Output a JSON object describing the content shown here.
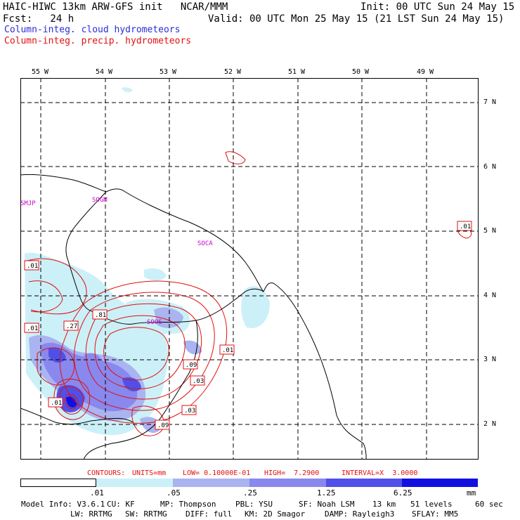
{
  "header": {
    "line1_left": "HAIC-HIWC 13km ARW-GFS init   NCAR/MMM",
    "line1_right": "Init: 00 UTC Sun 24 May 15",
    "line2_left": "Fcst:   24 h",
    "line2_right": "Valid: 00 UTC Mon 25 May 15 (21 LST Sun 24 May 15)",
    "line3": "Column-integ. cloud hydrometeors",
    "line4": "Column-integ. precip. hydrometeors"
  },
  "axes": {
    "lon_labels": [
      "55 W",
      "54 W",
      "53 W",
      "52 W",
      "51 W",
      "50 W",
      "49 W"
    ],
    "lat_labels": [
      "7 N",
      "6 N",
      "5 N",
      "4 N",
      "3 N",
      "2 N"
    ]
  },
  "stations": [
    "SMJP",
    "SOGM",
    "SOCA",
    "SOOS"
  ],
  "contour_labels": [
    ".01",
    ".01",
    ".01",
    ".27",
    ".81",
    ".01",
    ".09",
    ".03",
    ".03",
    ".09",
    ".01",
    ".01"
  ],
  "contour_info": {
    "contours": "CONTOURS:",
    "units": "UNITS=mm",
    "low": "LOW= 0.10000E-01",
    "high": "HIGH=  7.2900",
    "interval": "INTERVAL=X  3.0000"
  },
  "legend": {
    "ticks": [
      ".01",
      ".05",
      ".25",
      "1.25",
      "6.25"
    ],
    "unit": "mm",
    "colors": [
      "#ffffff",
      "#ccf0f8",
      "#aab4f0",
      "#8888ee",
      "#5050e8",
      "#1010e0"
    ]
  },
  "footer": {
    "line1": [
      "Model Info: V3.6.1",
      "CU: KF",
      "MP: Thompson",
      "PBL: YSU",
      "SF: Noah LSM",
      "13 km",
      "51 levels",
      "60 sec"
    ],
    "line2": [
      "LW: RRTMG",
      "SW: RRTMG",
      "DIFF: full",
      "KM: 2D Smagor",
      "DAMP: Rayleigh3",
      "SFLAY: MM5"
    ]
  }
}
